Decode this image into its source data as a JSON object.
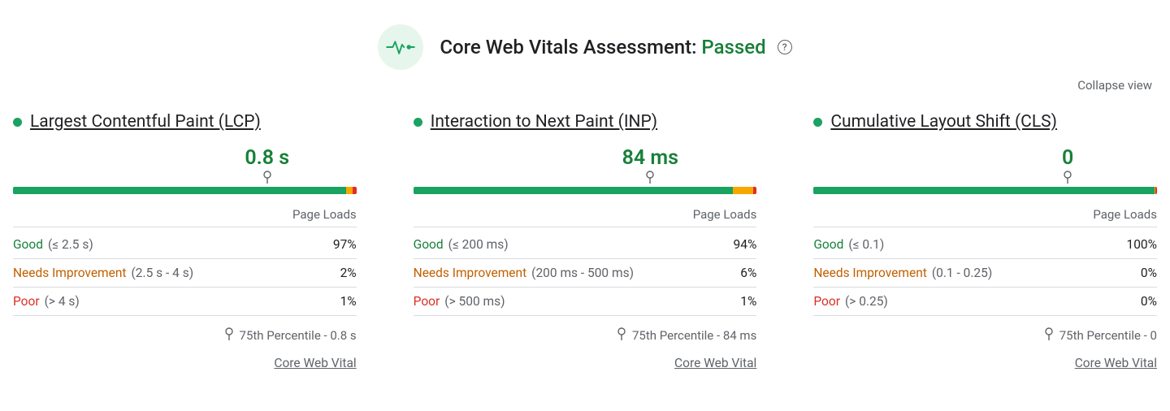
{
  "colors": {
    "good": "#1aa260",
    "need": "#f7a800",
    "poor": "#e22c27",
    "good_text": "#178038",
    "need_text": "#c06000",
    "poor_text": "#d93025",
    "muted": "#5f6368",
    "divider": "#dadce0",
    "badge_bg": "#e6f6ec",
    "background": "#ffffff",
    "text": "#202124"
  },
  "header": {
    "title_prefix": "Core Web Vitals Assessment: ",
    "status": "Passed"
  },
  "collapse_label": "Collapse view",
  "page_loads_label": "Page Loads",
  "percentile_prefix": "75th Percentile - ",
  "cwv_link_label": "Core Web Vital",
  "range_labels": {
    "good": "Good",
    "need": "Needs Improvement",
    "poor": "Poor"
  },
  "metrics": [
    {
      "id": "lcp",
      "name": "Largest Contentful Paint (LCP)",
      "status": "good",
      "value_display": "0.8 s",
      "marker_pct": 74,
      "distribution": {
        "good": 97,
        "need": 2,
        "poor": 1
      },
      "ranges": {
        "good": "(≤ 2.5 s)",
        "need": "(2.5 s - 4 s)",
        "poor": "(> 4 s)"
      },
      "percentile_value": "0.8 s"
    },
    {
      "id": "inp",
      "name": "Interaction to Next Paint (INP)",
      "status": "good",
      "value_display": "84 ms",
      "marker_pct": 69,
      "distribution": {
        "good": 94,
        "need": 6,
        "poor": 1
      },
      "ranges": {
        "good": "(≤ 200 ms)",
        "need": "(200 ms - 500 ms)",
        "poor": "(> 500 ms)"
      },
      "percentile_value": "84 ms"
    },
    {
      "id": "cls",
      "name": "Cumulative Layout Shift (CLS)",
      "status": "good",
      "value_display": "0",
      "marker_pct": 74,
      "distribution": {
        "good": 100,
        "need": 0,
        "poor": 0
      },
      "ranges": {
        "good": "(≤ 0.1)",
        "need": "(0.1 - 0.25)",
        "poor": "(> 0.25)"
      },
      "percentile_value": "0"
    }
  ]
}
